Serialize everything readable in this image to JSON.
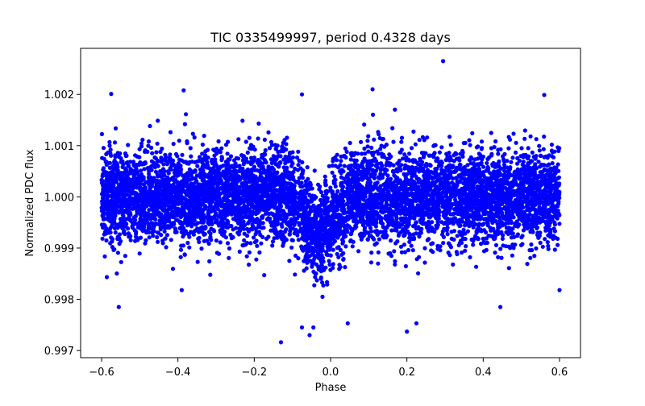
{
  "chart_data": {
    "type": "scatter",
    "title": "TIC 0335499997, period 0.4328 days",
    "xlabel": "Phase",
    "ylabel": "Normalized PDC flux",
    "xlim": [
      -0.655,
      0.655
    ],
    "ylim": [
      0.99686,
      1.0029
    ],
    "xticks": [
      -0.6,
      -0.4,
      -0.2,
      0.0,
      0.2,
      0.4,
      0.6
    ],
    "xtick_labels": [
      "−0.6",
      "−0.4",
      "−0.2",
      "0.0",
      "0.2",
      "0.4",
      "0.6"
    ],
    "yticks": [
      0.997,
      0.998,
      0.999,
      1.0,
      1.001,
      1.002
    ],
    "ytick_labels": [
      "0.997",
      "0.998",
      "0.999",
      "1.000",
      "1.001",
      "1.002"
    ],
    "grid": false,
    "series": [
      {
        "name": "PDC flux",
        "color": "#0000ff",
        "marker": "circle",
        "phase_range": [
          -0.6,
          0.6
        ],
        "baseline_flux": 1.0,
        "baseline_scatter_sigma": 0.00045,
        "transit": {
          "center_phase": -0.03,
          "depth": 0.0008,
          "half_width": 0.09
        },
        "sampled_point_count": 7000,
        "notable_points": [
          {
            "x": 0.295,
            "y": 1.00265
          },
          {
            "x": 0.11,
            "y": 1.0021
          },
          {
            "x": -0.385,
            "y": 1.00208
          },
          {
            "x": -0.575,
            "y": 1.00201
          },
          {
            "x": 0.56,
            "y": 1.00199
          },
          {
            "x": -0.075,
            "y": 1.002
          },
          {
            "x": -0.13,
            "y": 0.99716
          },
          {
            "x": -0.075,
            "y": 0.99745
          },
          {
            "x": -0.045,
            "y": 0.99745
          },
          {
            "x": -0.055,
            "y": 0.9973
          },
          {
            "x": 0.2,
            "y": 0.99737
          },
          {
            "x": 0.225,
            "y": 0.99753
          },
          {
            "x": 0.045,
            "y": 0.99753
          },
          {
            "x": -0.555,
            "y": 0.99785
          },
          {
            "x": 0.445,
            "y": 0.99785
          },
          {
            "x": 0.6,
            "y": 0.99818
          },
          {
            "x": -0.39,
            "y": 0.99818
          }
        ]
      }
    ]
  }
}
